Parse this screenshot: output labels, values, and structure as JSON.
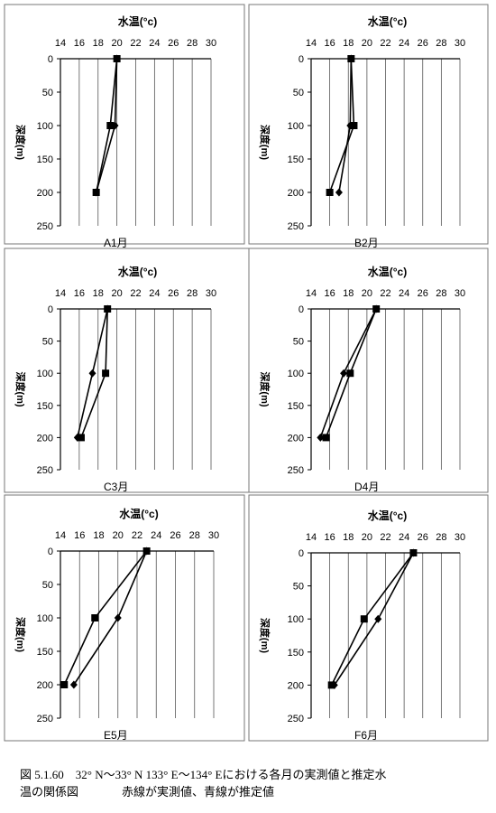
{
  "caption": {
    "line1": "図 5.1.60　32° N～33° N 133° E～134° Eにおける各月の実測値と推定水",
    "line2": "温の関係図",
    "line2_note": "赤線が実測値、青線が推定値"
  },
  "chart_data": [
    {
      "type": "line",
      "panel": "A1月",
      "title": "水温(°c)",
      "xlabel": "水温(°c)",
      "ylabel": "深度(m)",
      "xlim": [
        14,
        30
      ],
      "ylim": [
        0,
        250
      ],
      "xticks": [
        "14",
        "16",
        "18",
        "20",
        "22",
        "24",
        "26",
        "28",
        "30"
      ],
      "yticks": [
        "0",
        "50",
        "100",
        "150",
        "200",
        "250"
      ],
      "y_inverted": true,
      "grid": "vertical",
      "series": [
        {
          "marker": "square",
          "points": [
            [
              20.0,
              0
            ],
            [
              19.3,
              100
            ],
            [
              17.8,
              200
            ]
          ]
        },
        {
          "marker": "diamond",
          "points": [
            [
              20.0,
              0
            ],
            [
              19.8,
              100
            ],
            [
              17.8,
              200
            ]
          ]
        }
      ]
    },
    {
      "type": "line",
      "panel": "B2月",
      "title": "水温(°c)",
      "xlabel": "水温(°c)",
      "ylabel": "深度(m)",
      "xlim": [
        14,
        30
      ],
      "ylim": [
        0,
        250
      ],
      "xticks": [
        "14",
        "16",
        "18",
        "20",
        "22",
        "24",
        "26",
        "28",
        "30"
      ],
      "yticks": [
        "0",
        "50",
        "100",
        "150",
        "200",
        "250"
      ],
      "y_inverted": true,
      "grid": "vertical",
      "series": [
        {
          "marker": "square",
          "points": [
            [
              18.3,
              0
            ],
            [
              18.6,
              100
            ],
            [
              16.0,
              200
            ]
          ]
        },
        {
          "marker": "diamond",
          "points": [
            [
              18.3,
              0
            ],
            [
              18.2,
              100
            ],
            [
              17.0,
              200
            ]
          ]
        }
      ]
    },
    {
      "type": "line",
      "panel": "C3月",
      "title": "水温(°c)",
      "xlabel": "水温(°c)",
      "ylabel": "深度(m)",
      "xlim": [
        14,
        30
      ],
      "ylim": [
        0,
        250
      ],
      "xticks": [
        "14",
        "16",
        "18",
        "20",
        "22",
        "24",
        "26",
        "28",
        "30"
      ],
      "yticks": [
        "0",
        "50",
        "100",
        "150",
        "200",
        "250"
      ],
      "y_inverted": true,
      "grid": "vertical",
      "series": [
        {
          "marker": "square",
          "points": [
            [
              19.0,
              0
            ],
            [
              18.8,
              100
            ],
            [
              16.2,
              200
            ]
          ]
        },
        {
          "marker": "diamond",
          "points": [
            [
              19.0,
              0
            ],
            [
              17.4,
              100
            ],
            [
              15.8,
              200
            ]
          ]
        }
      ]
    },
    {
      "type": "line",
      "panel": "D4月",
      "title": "水温(°c)",
      "xlabel": "水温(°c)",
      "ylabel": "深度(m)",
      "xlim": [
        14,
        30
      ],
      "ylim": [
        0,
        250
      ],
      "xticks": [
        "14",
        "16",
        "18",
        "20",
        "22",
        "24",
        "26",
        "28",
        "30"
      ],
      "yticks": [
        "0",
        "50",
        "100",
        "150",
        "200",
        "250"
      ],
      "y_inverted": true,
      "grid": "vertical",
      "series": [
        {
          "marker": "square",
          "points": [
            [
              21.0,
              0
            ],
            [
              18.2,
              100
            ],
            [
              15.6,
              200
            ]
          ]
        },
        {
          "marker": "diamond",
          "points": [
            [
              21.0,
              0
            ],
            [
              17.5,
              100
            ],
            [
              15.0,
              200
            ]
          ]
        }
      ]
    },
    {
      "type": "line",
      "panel": "E5月",
      "title": "水温(°c)",
      "xlabel": "水温(°c)",
      "ylabel": "深度(m)",
      "xlim": [
        14,
        30
      ],
      "ylim": [
        0,
        250
      ],
      "xticks": [
        "14",
        "16",
        "18",
        "20",
        "22",
        "24",
        "26",
        "28",
        "30"
      ],
      "yticks": [
        "0",
        "50",
        "100",
        "150",
        "200",
        "250"
      ],
      "y_inverted": true,
      "grid": "vertical",
      "series": [
        {
          "marker": "square",
          "points": [
            [
              23.0,
              0
            ],
            [
              17.6,
              100
            ],
            [
              14.4,
              200
            ]
          ]
        },
        {
          "marker": "diamond",
          "points": [
            [
              23.0,
              0
            ],
            [
              20.0,
              100
            ],
            [
              15.4,
              200
            ]
          ]
        }
      ]
    },
    {
      "type": "line",
      "panel": "F6月",
      "title": "水温(°c)",
      "xlabel": "水温(°c)",
      "ylabel": "深度(m)",
      "xlim": [
        14,
        30
      ],
      "ylim": [
        0,
        250
      ],
      "xticks": [
        "14",
        "16",
        "18",
        "20",
        "22",
        "24",
        "26",
        "28",
        "30"
      ],
      "yticks": [
        "0",
        "50",
        "100",
        "150",
        "200",
        "250"
      ],
      "y_inverted": true,
      "grid": "vertical",
      "series": [
        {
          "marker": "square",
          "points": [
            [
              25.0,
              0
            ],
            [
              19.7,
              100
            ],
            [
              16.2,
              200
            ]
          ]
        },
        {
          "marker": "diamond",
          "points": [
            [
              25.0,
              0
            ],
            [
              21.2,
              100
            ],
            [
              16.5,
              200
            ]
          ]
        }
      ]
    }
  ]
}
